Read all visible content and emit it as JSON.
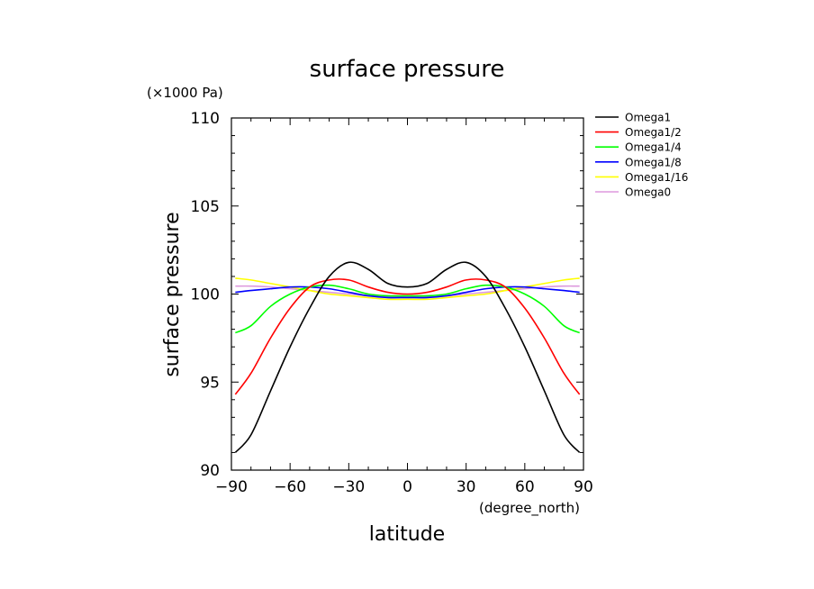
{
  "chart_data": {
    "type": "line",
    "title": "surface pressure",
    "unit_label": "(×1000 Pa)",
    "ylabel": "surface pressure",
    "xlabel": "latitude",
    "x_unit": "(degree_north)",
    "xlim": [
      -90,
      90
    ],
    "ylim": [
      90,
      110
    ],
    "x_ticks": [
      -90,
      -60,
      -30,
      0,
      30,
      60,
      90
    ],
    "x_tick_labels": [
      "−90",
      "−60",
      "−30",
      "0",
      "30",
      "60",
      "90"
    ],
    "y_ticks": [
      90,
      95,
      100,
      105,
      110
    ],
    "y_tick_labels": [
      "90",
      "95",
      "100",
      "105",
      "110"
    ],
    "legend_position": "right",
    "grid": false,
    "x": [
      -88,
      -80,
      -70,
      -60,
      -50,
      -40,
      -30,
      -20,
      -10,
      0,
      10,
      20,
      30,
      40,
      50,
      60,
      70,
      80,
      88
    ],
    "series": [
      {
        "name": "Omega1",
        "color": "#000000",
        "values": [
          91.0,
          92.0,
          94.5,
          97.0,
          99.2,
          101.0,
          101.8,
          101.4,
          100.6,
          100.4,
          100.6,
          101.4,
          101.8,
          101.0,
          99.2,
          97.0,
          94.5,
          92.0,
          91.0
        ]
      },
      {
        "name": "Omega1/2",
        "color": "#ff0000",
        "values": [
          94.3,
          95.5,
          97.5,
          99.2,
          100.4,
          100.8,
          100.8,
          100.4,
          100.1,
          100.0,
          100.1,
          100.4,
          100.8,
          100.8,
          100.4,
          99.2,
          97.5,
          95.5,
          94.3
        ]
      },
      {
        "name": "Omega1/4",
        "color": "#00ff00",
        "values": [
          97.8,
          98.2,
          99.3,
          100.0,
          100.4,
          100.5,
          100.3,
          100.0,
          99.9,
          99.9,
          99.9,
          100.0,
          100.3,
          100.5,
          100.4,
          100.0,
          99.3,
          98.2,
          97.8
        ]
      },
      {
        "name": "Omega1/8",
        "color": "#0000ff",
        "values": [
          100.1,
          100.2,
          100.3,
          100.4,
          100.4,
          100.3,
          100.1,
          99.9,
          99.8,
          99.8,
          99.8,
          99.9,
          100.1,
          100.3,
          100.4,
          100.4,
          100.3,
          100.2,
          100.1
        ]
      },
      {
        "name": "Omega1/16",
        "color": "#ffff00",
        "values": [
          100.9,
          100.8,
          100.6,
          100.4,
          100.2,
          100.0,
          99.9,
          99.8,
          99.7,
          99.7,
          99.7,
          99.8,
          99.9,
          100.0,
          100.2,
          100.4,
          100.6,
          100.8,
          100.9
        ]
      },
      {
        "name": "Omega0",
        "color": "#dd99dd",
        "values": [
          100.45,
          100.45,
          100.4,
          100.3,
          100.2,
          100.1,
          100.0,
          99.9,
          99.85,
          99.85,
          99.85,
          99.9,
          100.0,
          100.1,
          100.2,
          100.3,
          100.4,
          100.45,
          100.45
        ]
      }
    ]
  }
}
